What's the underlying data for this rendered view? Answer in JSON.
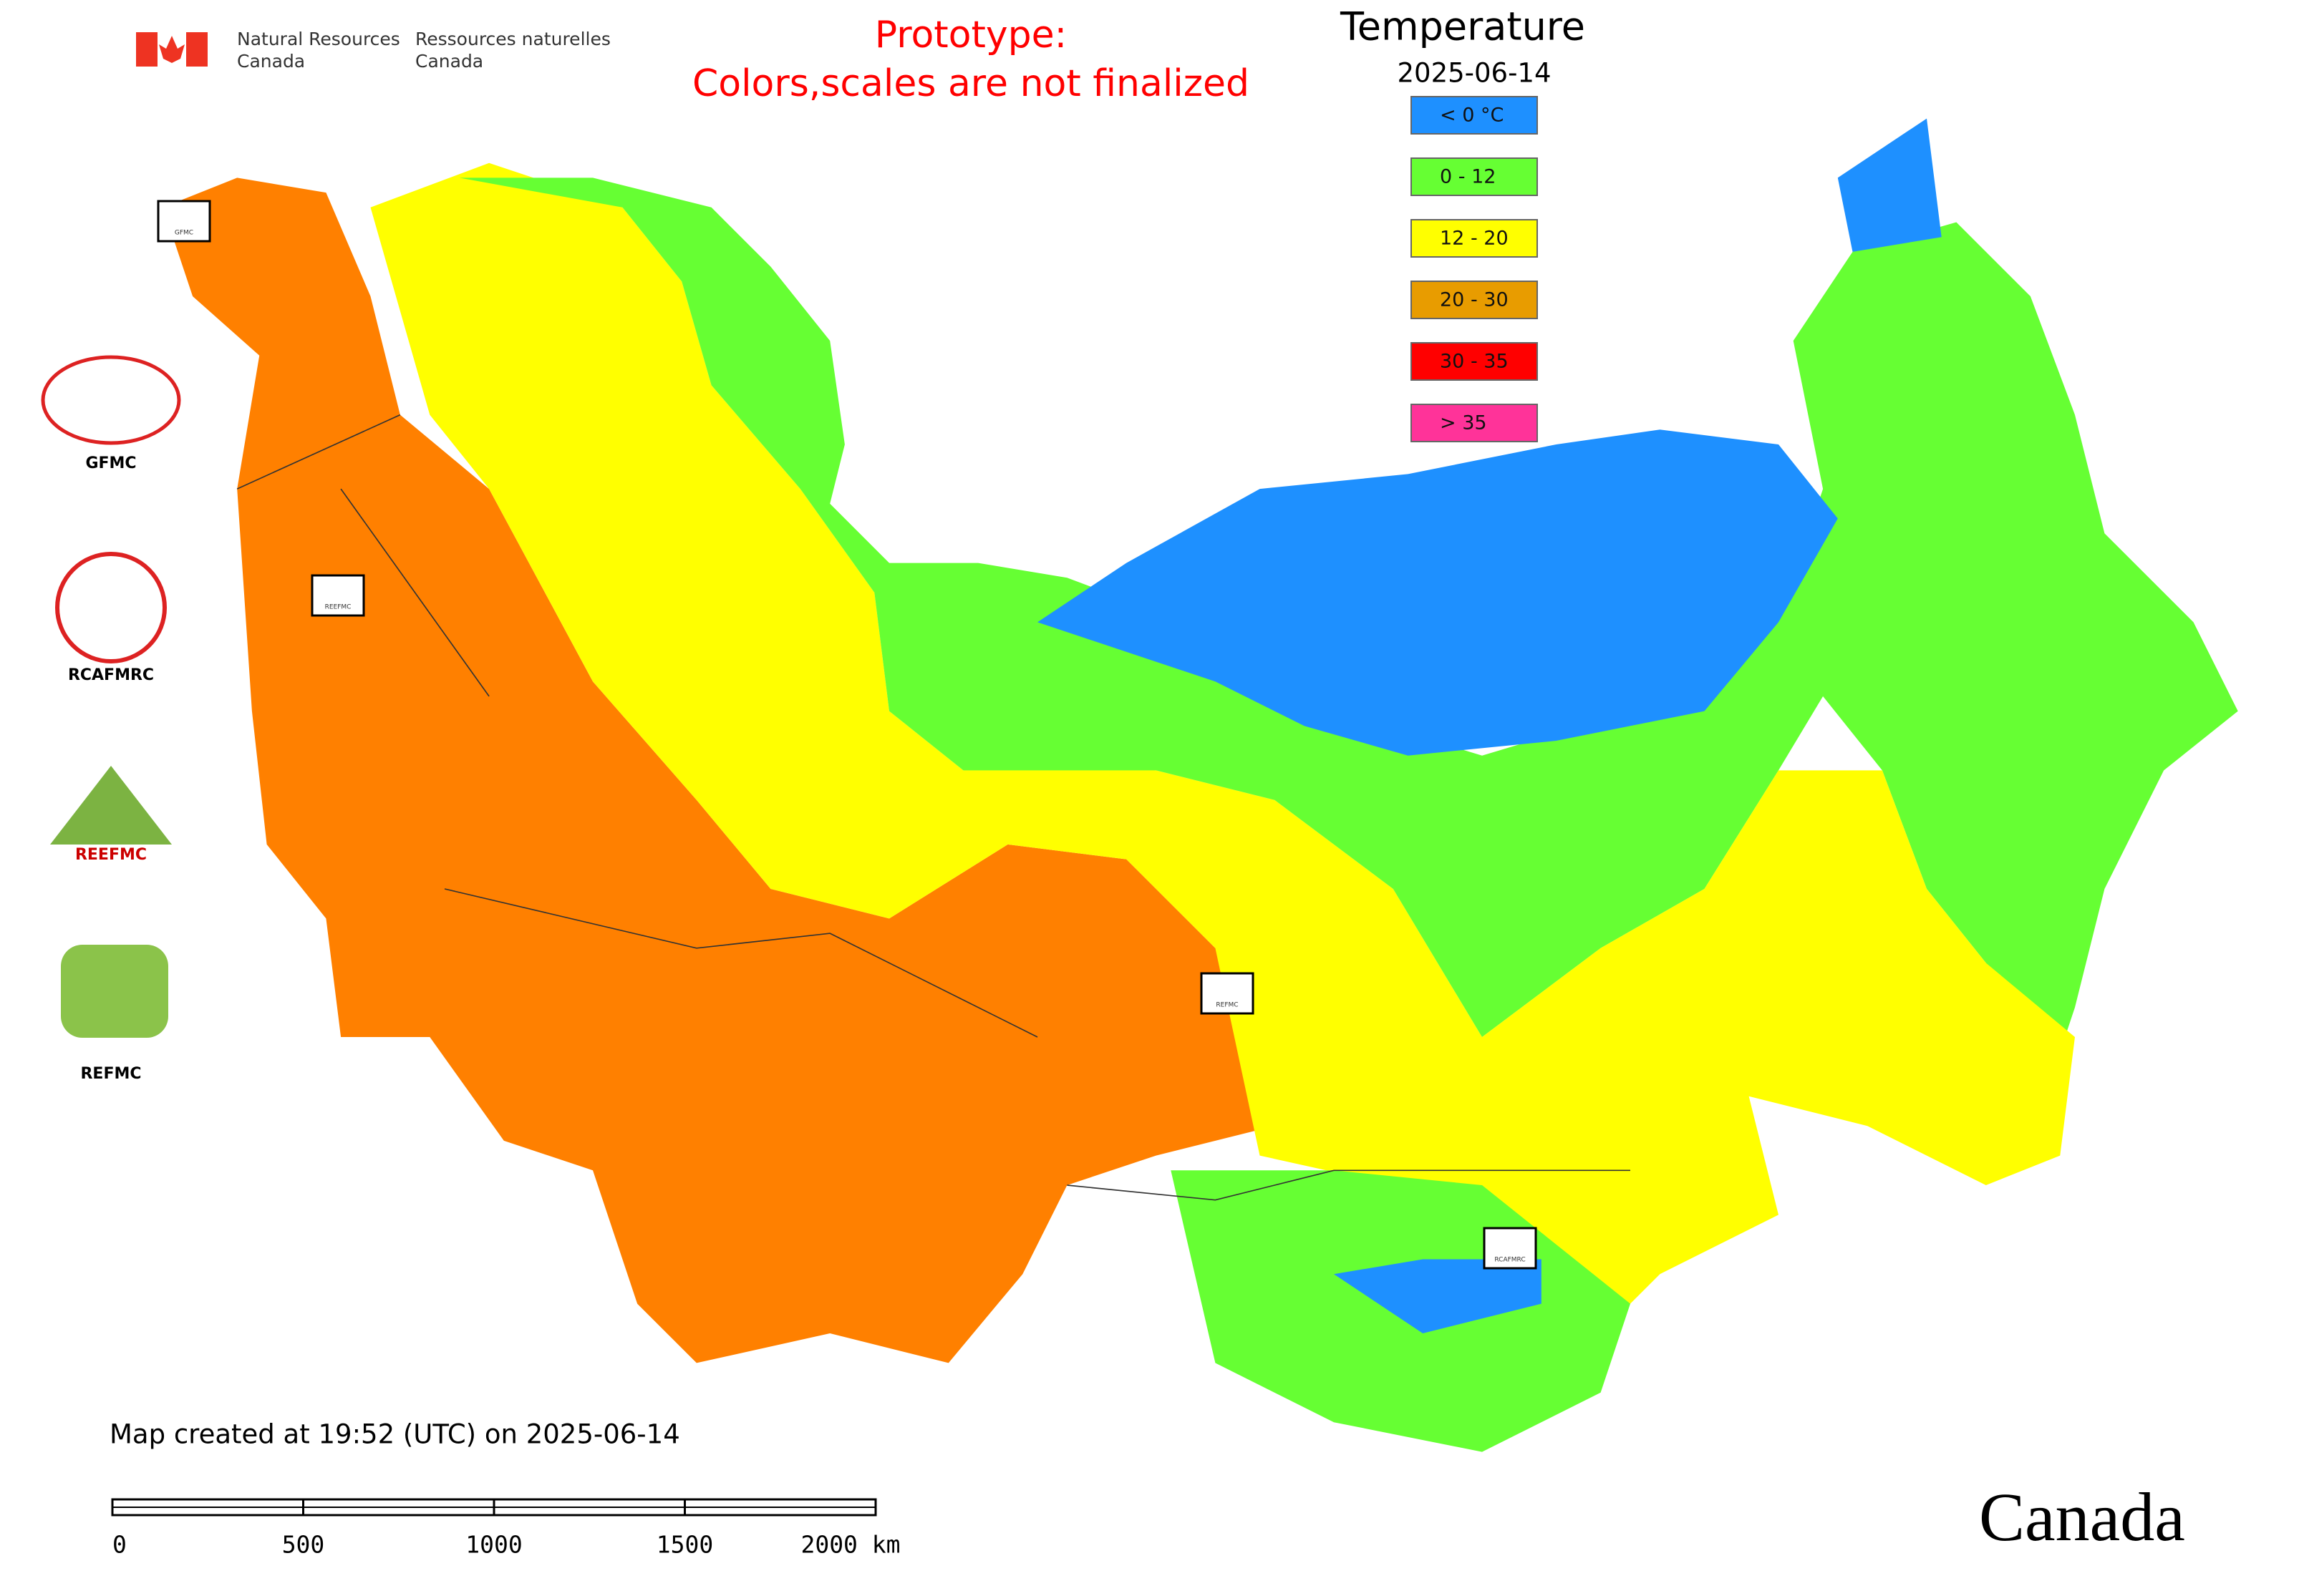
{
  "header": {
    "org_en_1": "Natural Resources",
    "org_en_2": "Canada",
    "org_fr_1": "Ressources naturelles",
    "org_fr_2": "Canada"
  },
  "notice": {
    "line1": "Prototype:",
    "line2": "Colors,scales are not finalized"
  },
  "legend": {
    "title": "Temperature",
    "date": "2025-06-14",
    "items": [
      {
        "label": "< 0 °C",
        "color": "#1e90ff"
      },
      {
        "label": "0 - 12",
        "color": "#66ff33"
      },
      {
        "label": "12 - 20",
        "color": "#ffff00"
      },
      {
        "label": "20 - 30",
        "color": "#e89c00"
      },
      {
        "label": "30 - 35",
        "color": "#ff0000"
      },
      {
        "label": "> 35",
        "color": "#ff3399"
      }
    ]
  },
  "logos": [
    "GFMC",
    "RCAFMRC",
    "REEFMC",
    "REFMC"
  ],
  "map_markers": [
    "GFMC",
    "REEFMC",
    "REFMC",
    "RCAFMRC"
  ],
  "footer": {
    "created": "Map created at 19:52 (UTC) on 2025-06-14",
    "wordmark": "Canada"
  },
  "scale_bar": [
    "0",
    "500",
    "1000",
    "1500",
    "2000 km"
  ]
}
